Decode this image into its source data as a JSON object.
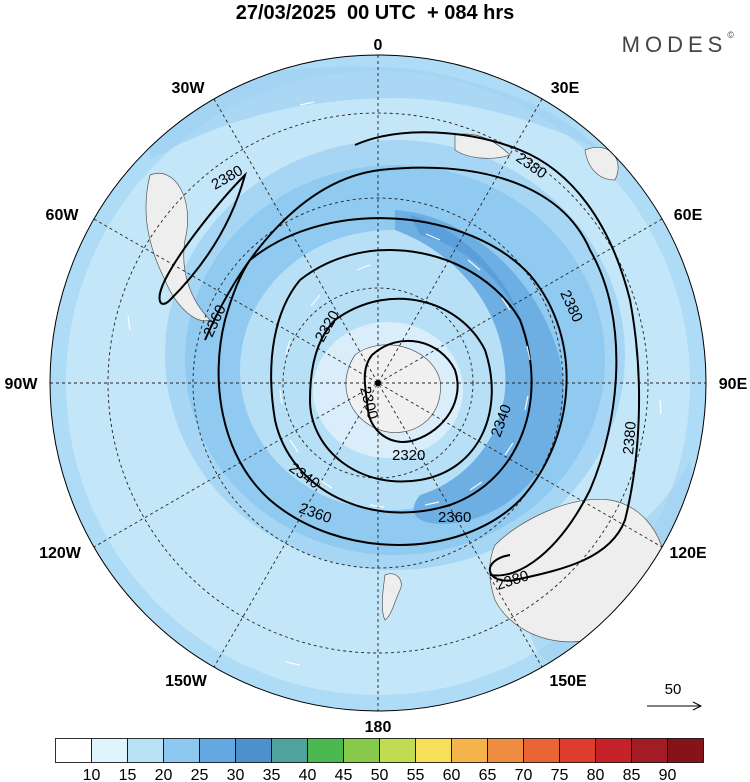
{
  "header": {
    "date": "27/03/2025",
    "run": "00 UTC",
    "lead": "+ 084 hrs"
  },
  "brand": "MODES",
  "brand_mark": "©",
  "map": {
    "projection": "south-polar-stereographic",
    "longitude_labels": [
      "0",
      "30E",
      "60E",
      "90E",
      "120E",
      "150E",
      "180",
      "150W",
      "120W",
      "90W",
      "60W",
      "30W"
    ],
    "contour_labels": [
      "2300",
      "2320",
      "2320",
      "2340",
      "2340",
      "2360",
      "2360",
      "2360",
      "2380",
      "2380",
      "2380",
      "2380",
      "2380"
    ],
    "wind_reference": "50",
    "colors": {
      "ocean_low": "#dff1fc",
      "ocean": "#b9e2f7",
      "jet_mid": "#8cc8ef",
      "jet_core": "#63a8e0",
      "land": "#f0f0f0",
      "contour": "#000000"
    }
  },
  "colorbar": {
    "ticks": [
      "10",
      "15",
      "20",
      "25",
      "30",
      "35",
      "40",
      "45",
      "50",
      "55",
      "60",
      "65",
      "70",
      "75",
      "80",
      "85",
      "90"
    ],
    "colors": [
      "#ffffff",
      "#dff4fd",
      "#b9e2f7",
      "#8cc8ef",
      "#63a8e0",
      "#4e8fcd",
      "#4fa39c",
      "#4cb850",
      "#87c94a",
      "#c2dc52",
      "#f6e05a",
      "#f4b34b",
      "#ef8c42",
      "#ea6536",
      "#df3c2e",
      "#c52128",
      "#a31c25",
      "#861318"
    ]
  }
}
